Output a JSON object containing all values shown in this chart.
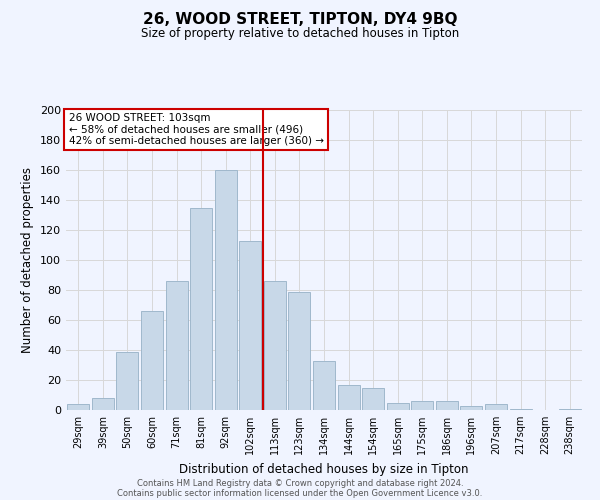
{
  "title": "26, WOOD STREET, TIPTON, DY4 9BQ",
  "subtitle": "Size of property relative to detached houses in Tipton",
  "xlabel": "Distribution of detached houses by size in Tipton",
  "ylabel": "Number of detached properties",
  "bar_labels": [
    "29sqm",
    "39sqm",
    "50sqm",
    "60sqm",
    "71sqm",
    "81sqm",
    "92sqm",
    "102sqm",
    "113sqm",
    "123sqm",
    "134sqm",
    "144sqm",
    "154sqm",
    "165sqm",
    "175sqm",
    "186sqm",
    "196sqm",
    "207sqm",
    "217sqm",
    "228sqm",
    "238sqm"
  ],
  "bar_values": [
    4,
    8,
    39,
    66,
    86,
    135,
    160,
    113,
    86,
    79,
    33,
    17,
    15,
    5,
    6,
    6,
    3,
    4,
    1,
    0,
    1
  ],
  "bar_color": "#c8d8e8",
  "bar_edge_color": "#a0b8cc",
  "vline_index": 7,
  "vline_color": "#cc0000",
  "annotation_title": "26 WOOD STREET: 103sqm",
  "annotation_line1": "← 58% of detached houses are smaller (496)",
  "annotation_line2": "42% of semi-detached houses are larger (360) →",
  "annotation_box_color": "#ffffff",
  "annotation_box_edge": "#cc0000",
  "ylim": [
    0,
    200
  ],
  "yticks": [
    0,
    20,
    40,
    60,
    80,
    100,
    120,
    140,
    160,
    180,
    200
  ],
  "grid_color": "#d8d8d8",
  "bg_color": "#f0f4ff",
  "footer1": "Contains HM Land Registry data © Crown copyright and database right 2024.",
  "footer2": "Contains public sector information licensed under the Open Government Licence v3.0."
}
